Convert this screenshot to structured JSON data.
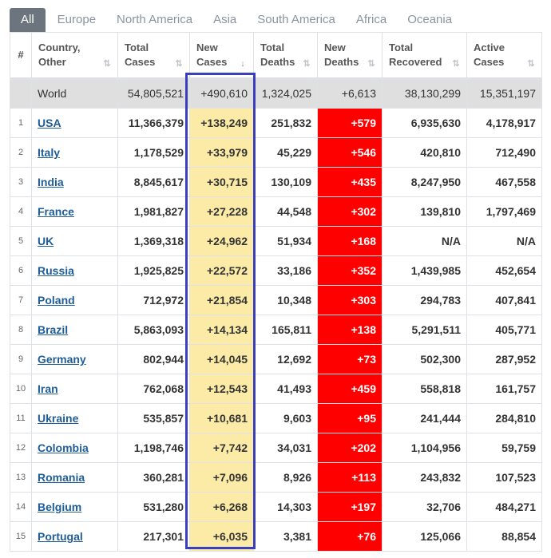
{
  "tabs": [
    "All",
    "Europe",
    "North America",
    "Asia",
    "South America",
    "Africa",
    "Oceania"
  ],
  "active_tab": "All",
  "headers": {
    "index": "#",
    "country": [
      "Country,",
      "Other"
    ],
    "total_cases": [
      "Total",
      "Cases"
    ],
    "new_cases": [
      "New",
      "Cases"
    ],
    "total_deaths": [
      "Total",
      "Deaths"
    ],
    "new_deaths": [
      "New",
      "Deaths"
    ],
    "total_recovered": [
      "Total",
      "Recovered"
    ],
    "active_cases": [
      "Active",
      "Cases"
    ]
  },
  "world": {
    "country": "World",
    "total_cases": "54,805,521",
    "new_cases": "+490,610",
    "total_deaths": "1,324,025",
    "new_deaths": "+6,613",
    "total_recovered": "38,130,299",
    "active_cases": "15,351,197"
  },
  "rows": [
    {
      "idx": "1",
      "country": "USA",
      "total_cases": "11,366,379",
      "new_cases": "+138,249",
      "total_deaths": "251,832",
      "new_deaths": "+579",
      "total_recovered": "6,935,630",
      "active_cases": "4,178,917"
    },
    {
      "idx": "2",
      "country": "Italy",
      "total_cases": "1,178,529",
      "new_cases": "+33,979",
      "total_deaths": "45,229",
      "new_deaths": "+546",
      "total_recovered": "420,810",
      "active_cases": "712,490"
    },
    {
      "idx": "3",
      "country": "India",
      "total_cases": "8,845,617",
      "new_cases": "+30,715",
      "total_deaths": "130,109",
      "new_deaths": "+435",
      "total_recovered": "8,247,950",
      "active_cases": "467,558"
    },
    {
      "idx": "4",
      "country": "France",
      "total_cases": "1,981,827",
      "new_cases": "+27,228",
      "total_deaths": "44,548",
      "new_deaths": "+302",
      "total_recovered": "139,810",
      "active_cases": "1,797,469"
    },
    {
      "idx": "5",
      "country": "UK",
      "total_cases": "1,369,318",
      "new_cases": "+24,962",
      "total_deaths": "51,934",
      "new_deaths": "+168",
      "total_recovered": "N/A",
      "active_cases": "N/A"
    },
    {
      "idx": "6",
      "country": "Russia",
      "total_cases": "1,925,825",
      "new_cases": "+22,572",
      "total_deaths": "33,186",
      "new_deaths": "+352",
      "total_recovered": "1,439,985",
      "active_cases": "452,654"
    },
    {
      "idx": "7",
      "country": "Poland",
      "total_cases": "712,972",
      "new_cases": "+21,854",
      "total_deaths": "10,348",
      "new_deaths": "+303",
      "total_recovered": "294,783",
      "active_cases": "407,841"
    },
    {
      "idx": "8",
      "country": "Brazil",
      "total_cases": "5,863,093",
      "new_cases": "+14,134",
      "total_deaths": "165,811",
      "new_deaths": "+138",
      "total_recovered": "5,291,511",
      "active_cases": "405,771"
    },
    {
      "idx": "9",
      "country": "Germany",
      "total_cases": "802,944",
      "new_cases": "+14,045",
      "total_deaths": "12,692",
      "new_deaths": "+73",
      "total_recovered": "502,300",
      "active_cases": "287,952"
    },
    {
      "idx": "10",
      "country": "Iran",
      "total_cases": "762,068",
      "new_cases": "+12,543",
      "total_deaths": "41,493",
      "new_deaths": "+459",
      "total_recovered": "558,818",
      "active_cases": "161,757"
    },
    {
      "idx": "11",
      "country": "Ukraine",
      "total_cases": "535,857",
      "new_cases": "+10,681",
      "total_deaths": "9,603",
      "new_deaths": "+95",
      "total_recovered": "241,444",
      "active_cases": "284,810"
    },
    {
      "idx": "12",
      "country": "Colombia",
      "total_cases": "1,198,746",
      "new_cases": "+7,742",
      "total_deaths": "34,031",
      "new_deaths": "+202",
      "total_recovered": "1,104,956",
      "active_cases": "59,759"
    },
    {
      "idx": "13",
      "country": "Romania",
      "total_cases": "360,281",
      "new_cases": "+7,096",
      "total_deaths": "8,926",
      "new_deaths": "+113",
      "total_recovered": "243,832",
      "active_cases": "107,523"
    },
    {
      "idx": "14",
      "country": "Belgium",
      "total_cases": "531,280",
      "new_cases": "+6,268",
      "total_deaths": "14,303",
      "new_deaths": "+197",
      "total_recovered": "32,706",
      "active_cases": "484,271"
    },
    {
      "idx": "15",
      "country": "Portugal",
      "total_cases": "217,301",
      "new_cases": "+6,035",
      "total_deaths": "3,381",
      "new_deaths": "+76",
      "total_recovered": "125,066",
      "active_cases": "88,854"
    }
  ],
  "colors": {
    "tab_active_bg": "#6c757d",
    "new_cases_bg": "#fbeba6",
    "new_deaths_bg": "#ff0000",
    "world_row_bg": "#dfdfdf",
    "country_link": "#1f5d96",
    "highlight_border": "#3b3fbd"
  },
  "icons": {
    "sort": "sort-arrows-icon",
    "sorted_desc": "sort-desc-icon"
  },
  "sorted_column": "new_cases"
}
